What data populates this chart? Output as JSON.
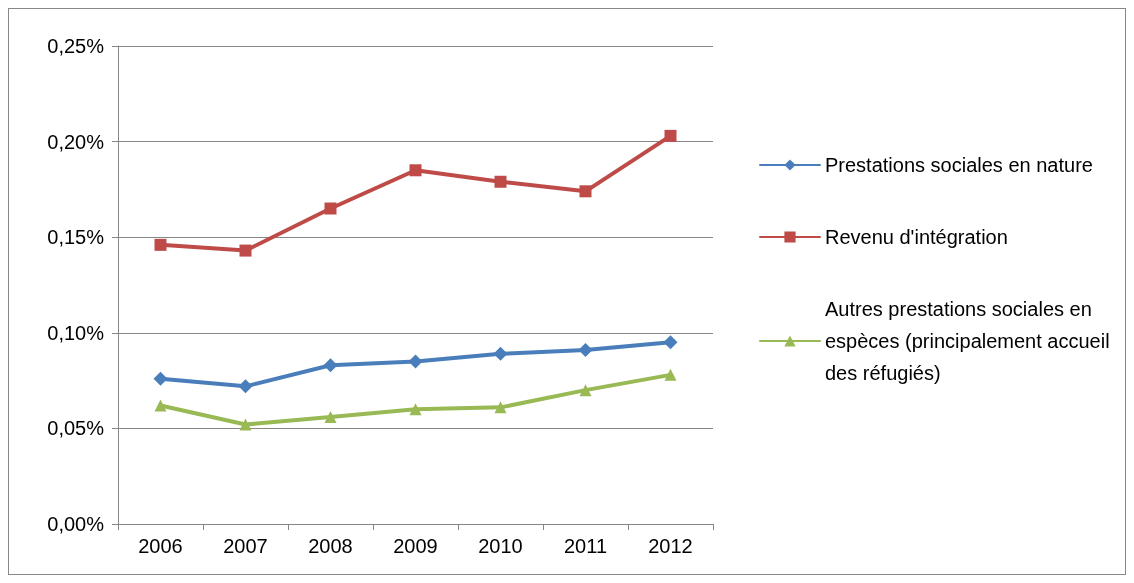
{
  "chart_data": {
    "type": "line",
    "categories": [
      "2006",
      "2007",
      "2008",
      "2009",
      "2010",
      "2011",
      "2012"
    ],
    "series": [
      {
        "name": "Prestations sociales en nature",
        "color": "#4a7ebb",
        "marker": "diamond",
        "values": [
          0.076,
          0.072,
          0.083,
          0.085,
          0.089,
          0.091,
          0.095
        ]
      },
      {
        "name": "Revenu d'intégration",
        "color": "#be4b48",
        "marker": "square",
        "values": [
          0.146,
          0.143,
          0.165,
          0.185,
          0.179,
          0.174,
          0.203
        ]
      },
      {
        "name": "Autres prestations sociales en espèces (principalement accueil des réfugiés)",
        "color": "#98b954",
        "marker": "triangle",
        "values": [
          0.062,
          0.052,
          0.056,
          0.06,
          0.061,
          0.07,
          0.078
        ]
      }
    ],
    "ylim": [
      0,
      0.25
    ],
    "yticks": [
      {
        "value": 0,
        "label": "0,00%"
      },
      {
        "value": 0.05,
        "label": "0,05%"
      },
      {
        "value": 0.1,
        "label": "0,10%"
      },
      {
        "value": 0.15,
        "label": "0,15%"
      },
      {
        "value": 0.2,
        "label": "0,20%"
      },
      {
        "value": 0.25,
        "label": "0,25%"
      }
    ],
    "grid": "y",
    "legend": "right",
    "line_style": "solid"
  }
}
